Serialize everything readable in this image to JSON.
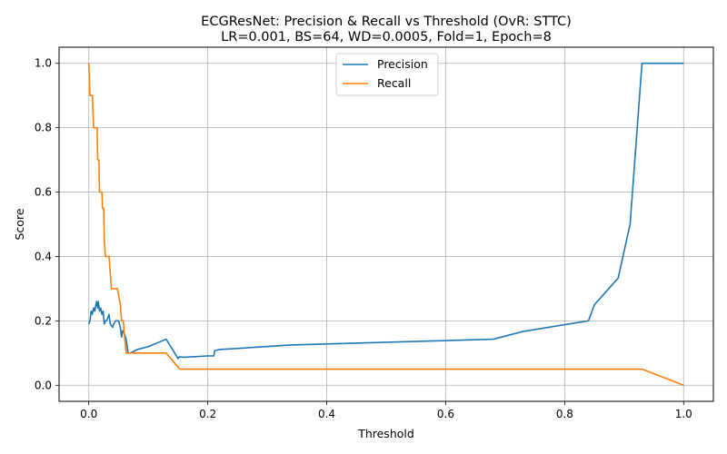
{
  "chart_data": {
    "type": "line",
    "title": "ECGResNet: Precision & Recall vs Threshold (OvR: STTC)",
    "subtitle": "LR=0.001, BS=64, WD=0.0005, Fold=1, Epoch=8",
    "xlabel": "Threshold",
    "ylabel": "Score",
    "xlim": [
      -0.05,
      1.05
    ],
    "ylim": [
      -0.05,
      1.05
    ],
    "xticks": [
      "0.0",
      "0.2",
      "0.4",
      "0.6",
      "0.8",
      "1.0"
    ],
    "yticks": [
      "0.0",
      "0.2",
      "0.4",
      "0.6",
      "0.8",
      "1.0"
    ],
    "grid": true,
    "legend_position": "top-center",
    "series": [
      {
        "name": "Precision",
        "color": "#1f77b4",
        "points": [
          [
            0.0,
            0.19
          ],
          [
            0.002,
            0.2
          ],
          [
            0.004,
            0.23
          ],
          [
            0.006,
            0.22
          ],
          [
            0.008,
            0.24
          ],
          [
            0.01,
            0.23
          ],
          [
            0.012,
            0.25
          ],
          [
            0.013,
            0.26
          ],
          [
            0.015,
            0.24
          ],
          [
            0.016,
            0.26
          ],
          [
            0.018,
            0.23
          ],
          [
            0.02,
            0.24
          ],
          [
            0.022,
            0.22
          ],
          [
            0.024,
            0.23
          ],
          [
            0.026,
            0.19
          ],
          [
            0.028,
            0.2
          ],
          [
            0.03,
            0.2
          ],
          [
            0.034,
            0.22
          ],
          [
            0.036,
            0.19
          ],
          [
            0.04,
            0.18
          ],
          [
            0.042,
            0.19
          ],
          [
            0.045,
            0.2
          ],
          [
            0.05,
            0.2
          ],
          [
            0.053,
            0.18
          ],
          [
            0.055,
            0.15
          ],
          [
            0.057,
            0.17
          ],
          [
            0.06,
            0.16
          ],
          [
            0.063,
            0.14
          ],
          [
            0.066,
            0.1
          ],
          [
            0.07,
            0.1
          ],
          [
            0.08,
            0.11
          ],
          [
            0.1,
            0.12
          ],
          [
            0.13,
            0.143
          ],
          [
            0.15,
            0.083
          ],
          [
            0.152,
            0.088
          ],
          [
            0.16,
            0.087
          ],
          [
            0.2,
            0.091
          ],
          [
            0.21,
            0.091
          ],
          [
            0.212,
            0.108
          ],
          [
            0.22,
            0.111
          ],
          [
            0.34,
            0.125
          ],
          [
            0.68,
            0.143
          ],
          [
            0.73,
            0.167
          ],
          [
            0.84,
            0.2
          ],
          [
            0.85,
            0.25
          ],
          [
            0.89,
            0.333
          ],
          [
            0.91,
            0.5
          ],
          [
            0.93,
            1.0
          ],
          [
            1.0,
            1.0
          ]
        ]
      },
      {
        "name": "Recall",
        "color": "#ff7f0e",
        "points": [
          [
            0.0,
            1.0
          ],
          [
            0.002,
            0.9
          ],
          [
            0.006,
            0.9
          ],
          [
            0.008,
            0.8
          ],
          [
            0.014,
            0.8
          ],
          [
            0.015,
            0.7
          ],
          [
            0.017,
            0.7
          ],
          [
            0.018,
            0.6
          ],
          [
            0.022,
            0.6
          ],
          [
            0.023,
            0.55
          ],
          [
            0.025,
            0.55
          ],
          [
            0.026,
            0.45
          ],
          [
            0.028,
            0.4
          ],
          [
            0.034,
            0.4
          ],
          [
            0.038,
            0.3
          ],
          [
            0.048,
            0.3
          ],
          [
            0.053,
            0.25
          ],
          [
            0.055,
            0.2
          ],
          [
            0.058,
            0.2
          ],
          [
            0.06,
            0.15
          ],
          [
            0.063,
            0.1
          ],
          [
            0.13,
            0.1
          ],
          [
            0.153,
            0.05
          ],
          [
            0.93,
            0.05
          ],
          [
            1.0,
            0.0
          ]
        ]
      }
    ]
  }
}
